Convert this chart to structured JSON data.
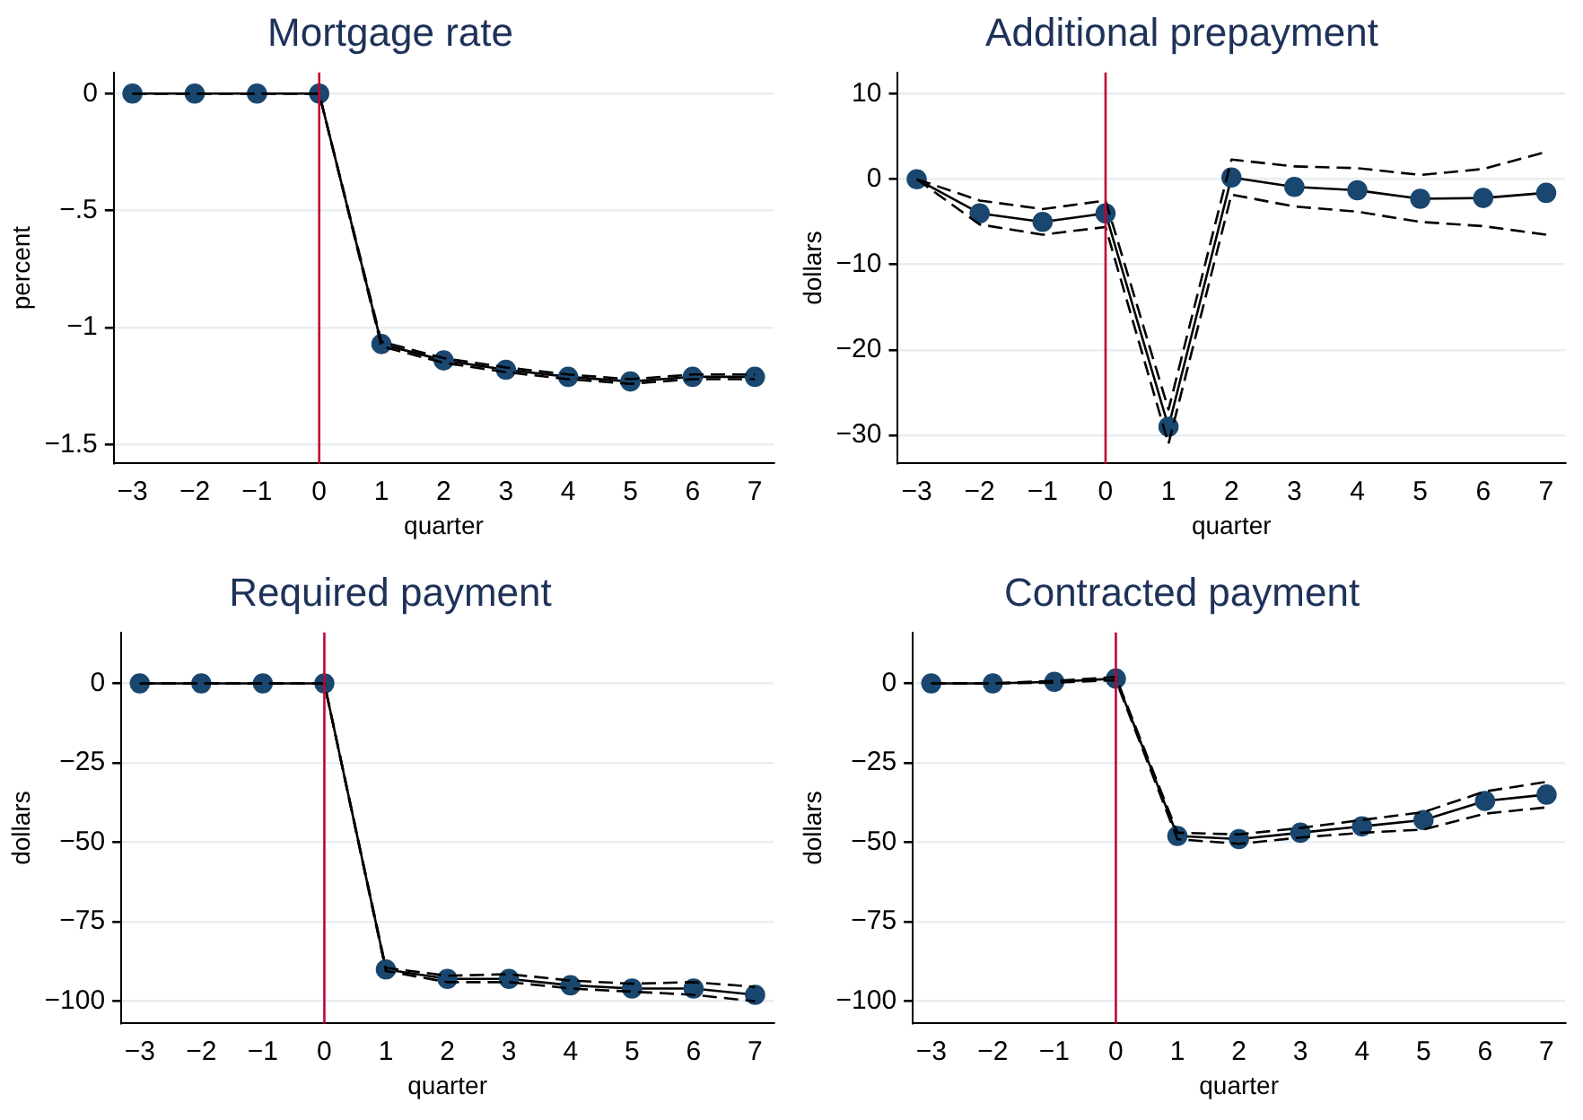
{
  "chart_data": [
    {
      "type": "line",
      "title": "Mortgage rate",
      "xlabel": "quarter",
      "ylabel": "percent",
      "x": [
        -3,
        -2,
        -1,
        0,
        1,
        2,
        3,
        4,
        5,
        6,
        7
      ],
      "xlim": [
        -3.3,
        7.3
      ],
      "xticks": [
        {
          "value": -3,
          "label": "−3"
        },
        {
          "value": -2,
          "label": "−2"
        },
        {
          "value": -1,
          "label": "−1"
        },
        {
          "value": 0,
          "label": "0"
        },
        1,
        2,
        3,
        4,
        5,
        6,
        7
      ],
      "ylim": [
        -1.58,
        0.09
      ],
      "yticks": [
        {
          "value": 0,
          "label": "0"
        },
        {
          "value": -0.5,
          "label": "−.5"
        },
        {
          "value": -1,
          "label": "−1"
        },
        {
          "value": -1.5,
          "label": "−1.5"
        }
      ],
      "grid": "y",
      "legend": false,
      "marker": "circle",
      "line_style": "solid",
      "ref_lines": [
        {
          "axis": "x",
          "value": 0,
          "color": "#c10534"
        }
      ],
      "series": [
        {
          "color": "#1a476f",
          "values": [
            0,
            0,
            0,
            0,
            -1.07,
            -1.14,
            -1.18,
            -1.21,
            -1.23,
            -1.21,
            -1.21
          ]
        },
        {
          "color": "#000000",
          "marker": "none",
          "line_style": "dashed",
          "values": [
            0,
            0,
            0,
            0,
            -1.08,
            -1.15,
            -1.19,
            -1.22,
            -1.24,
            -1.22,
            -1.22
          ]
        },
        {
          "color": "#000000",
          "marker": "none",
          "line_style": "dashed",
          "values": [
            0,
            0,
            0,
            0,
            -1.06,
            -1.13,
            -1.17,
            -1.2,
            -1.22,
            -1.2,
            -1.2
          ]
        }
      ]
    },
    {
      "type": "line",
      "title": "Additional prepayment",
      "xlabel": "quarter",
      "ylabel": "dollars",
      "x": [
        -3,
        -2,
        -1,
        0,
        1,
        2,
        3,
        4,
        5,
        6,
        7
      ],
      "xlim": [
        -3.3,
        7.3
      ],
      "xticks": [
        {
          "value": -3,
          "label": "−3"
        },
        {
          "value": -2,
          "label": "−2"
        },
        {
          "value": -1,
          "label": "−1"
        },
        {
          "value": 0,
          "label": "0"
        },
        1,
        2,
        3,
        4,
        5,
        6,
        7
      ],
      "ylim": [
        -33.3,
        12.5
      ],
      "yticks": [
        10,
        {
          "value": 0,
          "label": "0"
        },
        {
          "value": -10,
          "label": "−10"
        },
        {
          "value": -20,
          "label": "−20"
        },
        {
          "value": -30,
          "label": "−30"
        }
      ],
      "grid": "y",
      "legend": false,
      "marker": "circle",
      "line_style": "solid",
      "ref_lines": [
        {
          "axis": "x",
          "value": 0,
          "color": "#c10534"
        }
      ],
      "series": [
        {
          "color": "#1a476f",
          "values": [
            0,
            -4,
            -5,
            -4,
            -29,
            0.2,
            -0.9,
            -1.3,
            -2.3,
            -2.2,
            -1.6
          ]
        },
        {
          "color": "#000000",
          "marker": "none",
          "line_style": "dashed",
          "values": [
            0,
            -5.3,
            -6.5,
            -5.6,
            -31,
            -1.8,
            -3.2,
            -3.8,
            -5,
            -5.5,
            -6.5
          ]
        },
        {
          "color": "#000000",
          "marker": "none",
          "line_style": "dashed",
          "values": [
            0,
            -2.5,
            -3.5,
            -2.5,
            -27,
            2.3,
            1.5,
            1.3,
            0.5,
            1.2,
            3.2
          ]
        }
      ]
    },
    {
      "type": "line",
      "title": "Required payment",
      "xlabel": "quarter",
      "ylabel": "dollars",
      "x": [
        -3,
        -2,
        -1,
        0,
        1,
        2,
        3,
        4,
        5,
        6,
        7
      ],
      "xlim": [
        -3.3,
        7.3
      ],
      "xticks": [
        {
          "value": -3,
          "label": "−3"
        },
        {
          "value": -2,
          "label": "−2"
        },
        {
          "value": -1,
          "label": "−1"
        },
        {
          "value": 0,
          "label": "0"
        },
        1,
        2,
        3,
        4,
        5,
        6,
        7
      ],
      "ylim": [
        -107,
        16
      ],
      "yticks": [
        {
          "value": 0,
          "label": "0"
        },
        {
          "value": -25,
          "label": "−25"
        },
        {
          "value": -50,
          "label": "−50"
        },
        {
          "value": -75,
          "label": "−75"
        },
        {
          "value": -100,
          "label": "−100"
        }
      ],
      "grid": "y",
      "legend": false,
      "marker": "circle",
      "line_style": "solid",
      "ref_lines": [
        {
          "axis": "x",
          "value": 0,
          "color": "#c10534"
        }
      ],
      "series": [
        {
          "color": "#1a476f",
          "values": [
            0,
            0,
            0,
            0,
            -90,
            -93,
            -93,
            -95,
            -96,
            -96,
            -98
          ]
        },
        {
          "color": "#000000",
          "marker": "none",
          "line_style": "dashed",
          "values": [
            0,
            0,
            0,
            0,
            -90.5,
            -94,
            -94,
            -96,
            -97,
            -98,
            -100
          ]
        },
        {
          "color": "#000000",
          "marker": "none",
          "line_style": "dashed",
          "values": [
            0,
            0,
            0,
            0,
            -89.5,
            -92,
            -91.5,
            -93.5,
            -94.5,
            -94,
            -95.5
          ]
        }
      ]
    },
    {
      "type": "line",
      "title": "Contracted payment",
      "xlabel": "quarter",
      "ylabel": "dollars",
      "x": [
        -3,
        -2,
        -1,
        0,
        1,
        2,
        3,
        4,
        5,
        6,
        7
      ],
      "xlim": [
        -3.3,
        7.3
      ],
      "xticks": [
        {
          "value": -3,
          "label": "−3"
        },
        {
          "value": -2,
          "label": "−2"
        },
        {
          "value": -1,
          "label": "−1"
        },
        {
          "value": 0,
          "label": "0"
        },
        1,
        2,
        3,
        4,
        5,
        6,
        7
      ],
      "ylim": [
        -107,
        16
      ],
      "yticks": [
        {
          "value": 0,
          "label": "0"
        },
        {
          "value": -25,
          "label": "−25"
        },
        {
          "value": -50,
          "label": "−50"
        },
        {
          "value": -75,
          "label": "−75"
        },
        {
          "value": -100,
          "label": "−100"
        }
      ],
      "grid": "y",
      "legend": false,
      "marker": "circle",
      "line_style": "solid",
      "ref_lines": [
        {
          "axis": "x",
          "value": 0,
          "color": "#c10534"
        }
      ],
      "series": [
        {
          "color": "#1a476f",
          "values": [
            0,
            0,
            0.5,
            1.5,
            -48,
            -49,
            -47,
            -45,
            -43,
            -37,
            -35
          ]
        },
        {
          "color": "#000000",
          "marker": "none",
          "line_style": "dashed",
          "values": [
            0,
            0,
            0.2,
            1,
            -49,
            -50.5,
            -48.5,
            -47,
            -46,
            -41,
            -39
          ]
        },
        {
          "color": "#000000",
          "marker": "none",
          "line_style": "dashed",
          "values": [
            0,
            0,
            0.8,
            2,
            -47,
            -47.5,
            -45.5,
            -43,
            -40.5,
            -34,
            -31
          ]
        }
      ]
    }
  ]
}
